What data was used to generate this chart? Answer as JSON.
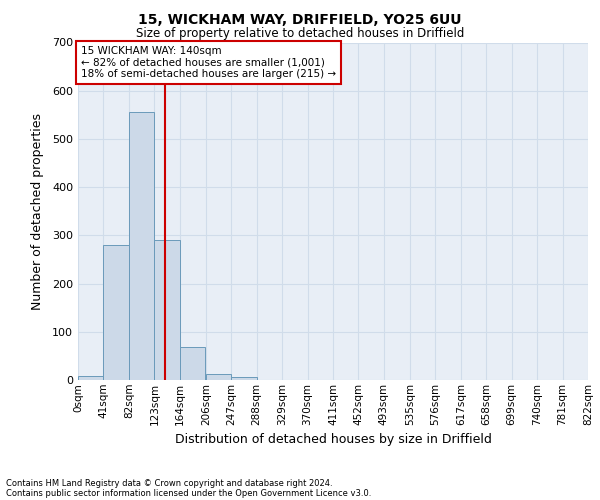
{
  "title1": "15, WICKHAM WAY, DRIFFIELD, YO25 6UU",
  "title2": "Size of property relative to detached houses in Driffield",
  "xlabel": "Distribution of detached houses by size in Driffield",
  "ylabel": "Number of detached properties",
  "bar_left_edges": [
    0,
    41,
    82,
    123,
    164,
    206,
    247,
    288,
    329,
    370,
    411,
    452,
    493,
    535,
    576,
    617,
    658,
    699,
    740,
    781
  ],
  "bar_heights": [
    8,
    280,
    555,
    290,
    68,
    13,
    6,
    0,
    0,
    0,
    0,
    0,
    0,
    0,
    0,
    0,
    0,
    0,
    0,
    0
  ],
  "bin_width": 41,
  "bar_color": "#ccd9e8",
  "bar_edge_color": "#6a9aba",
  "property_line_x": 140,
  "property_line_color": "#cc0000",
  "ylim": [
    0,
    700
  ],
  "yticks": [
    0,
    100,
    200,
    300,
    400,
    500,
    600,
    700
  ],
  "xtick_positions": [
    0,
    41,
    82,
    123,
    164,
    206,
    247,
    288,
    329,
    370,
    411,
    452,
    493,
    535,
    576,
    617,
    658,
    699,
    740,
    781,
    822
  ],
  "xtick_labels": [
    "0sqm",
    "41sqm",
    "82sqm",
    "123sqm",
    "164sqm",
    "206sqm",
    "247sqm",
    "288sqm",
    "329sqm",
    "370sqm",
    "411sqm",
    "452sqm",
    "493sqm",
    "535sqm",
    "576sqm",
    "617sqm",
    "658sqm",
    "699sqm",
    "740sqm",
    "781sqm",
    "822sqm"
  ],
  "annotation_text": "15 WICKHAM WAY: 140sqm\n← 82% of detached houses are smaller (1,001)\n18% of semi-detached houses are larger (215) →",
  "annotation_box_facecolor": "#ffffff",
  "annotation_box_edgecolor": "#cc0000",
  "grid_color": "#d0dcea",
  "plot_bg_color": "#e8eef6",
  "fig_bg_color": "#ffffff",
  "footnote1": "Contains HM Land Registry data © Crown copyright and database right 2024.",
  "footnote2": "Contains public sector information licensed under the Open Government Licence v3.0."
}
